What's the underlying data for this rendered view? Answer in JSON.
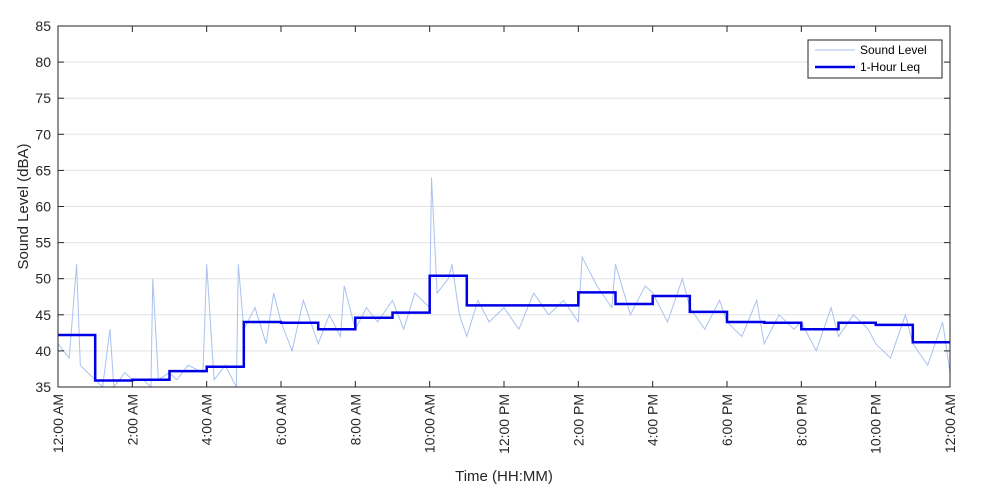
{
  "chart_data": {
    "type": "line",
    "xlabel": "Time (HH:MM)",
    "ylabel": "Sound Level (dBA)",
    "xlim": [
      0,
      24
    ],
    "ylim": [
      35,
      85
    ],
    "yticks": [
      35,
      40,
      45,
      50,
      55,
      60,
      65,
      70,
      75,
      80,
      85
    ],
    "xticks": [
      0,
      2,
      4,
      6,
      8,
      10,
      12,
      14,
      16,
      18,
      20,
      22,
      24
    ],
    "xtick_labels": [
      "12:00 AM",
      "2:00 AM",
      "4:00 AM",
      "6:00 AM",
      "8:00 AM",
      "10:00 AM",
      "12:00 PM",
      "2:00 PM",
      "4:00 PM",
      "6:00 PM",
      "8:00 PM",
      "10:00 PM",
      "12:00 AM"
    ],
    "grid": true,
    "legend_position": "top-right",
    "series": [
      {
        "name": "Sound Level",
        "style": "thin-line",
        "color": "#a9c2ef",
        "x": [
          0.0,
          0.3,
          0.5,
          0.6,
          0.8,
          1.0,
          1.2,
          1.4,
          1.5,
          1.8,
          2.0,
          2.3,
          2.5,
          2.55,
          2.7,
          3.0,
          3.2,
          3.5,
          3.9,
          4.0,
          4.2,
          4.5,
          4.8,
          4.85,
          5.0,
          5.3,
          5.6,
          5.8,
          6.0,
          6.3,
          6.6,
          7.0,
          7.3,
          7.6,
          7.7,
          8.0,
          8.3,
          8.6,
          9.0,
          9.3,
          9.6,
          10.0,
          10.05,
          10.2,
          10.5,
          10.6,
          10.8,
          11.0,
          11.3,
          11.6,
          12.0,
          12.4,
          12.8,
          13.2,
          13.6,
          14.0,
          14.1,
          14.5,
          14.9,
          15.0,
          15.4,
          15.8,
          16.0,
          16.4,
          16.8,
          17.0,
          17.4,
          17.8,
          18.0,
          18.4,
          18.8,
          19.0,
          19.4,
          19.8,
          20.0,
          20.4,
          20.8,
          21.0,
          21.4,
          21.8,
          22.0,
          22.4,
          22.8,
          23.0,
          23.4,
          23.8,
          24.0
        ],
        "values": [
          41,
          39,
          52,
          38,
          37,
          36,
          35,
          43,
          35,
          37,
          36,
          36,
          35,
          50,
          36,
          37,
          36,
          38,
          37,
          52,
          36,
          38,
          35,
          52,
          43,
          46,
          41,
          48,
          44,
          40,
          47,
          41,
          45,
          42,
          49,
          43,
          46,
          44,
          47,
          43,
          48,
          46,
          64,
          48,
          50,
          52,
          45,
          42,
          47,
          44,
          46,
          43,
          48,
          45,
          47,
          44,
          53,
          49,
          46,
          52,
          45,
          49,
          48,
          44,
          50,
          46,
          43,
          47,
          44,
          42,
          47,
          41,
          45,
          43,
          44,
          40,
          46,
          42,
          45,
          43,
          41,
          39,
          45,
          41,
          38,
          44,
          37
        ]
      },
      {
        "name": "1-Hour Leq",
        "style": "step",
        "color": "#0000e6",
        "x": [
          0,
          1,
          2,
          3,
          4,
          5,
          6,
          7,
          8,
          9,
          10,
          11,
          12,
          13,
          14,
          15,
          16,
          17,
          18,
          19,
          20,
          21,
          22,
          23
        ],
        "values": [
          42.2,
          35.9,
          36.0,
          37.2,
          37.8,
          44.0,
          43.9,
          43.0,
          44.6,
          45.3,
          50.4,
          46.3,
          46.3,
          46.3,
          48.1,
          46.5,
          47.6,
          45.4,
          44.0,
          43.9,
          43.0,
          43.9,
          43.6,
          41.2
        ]
      }
    ]
  }
}
